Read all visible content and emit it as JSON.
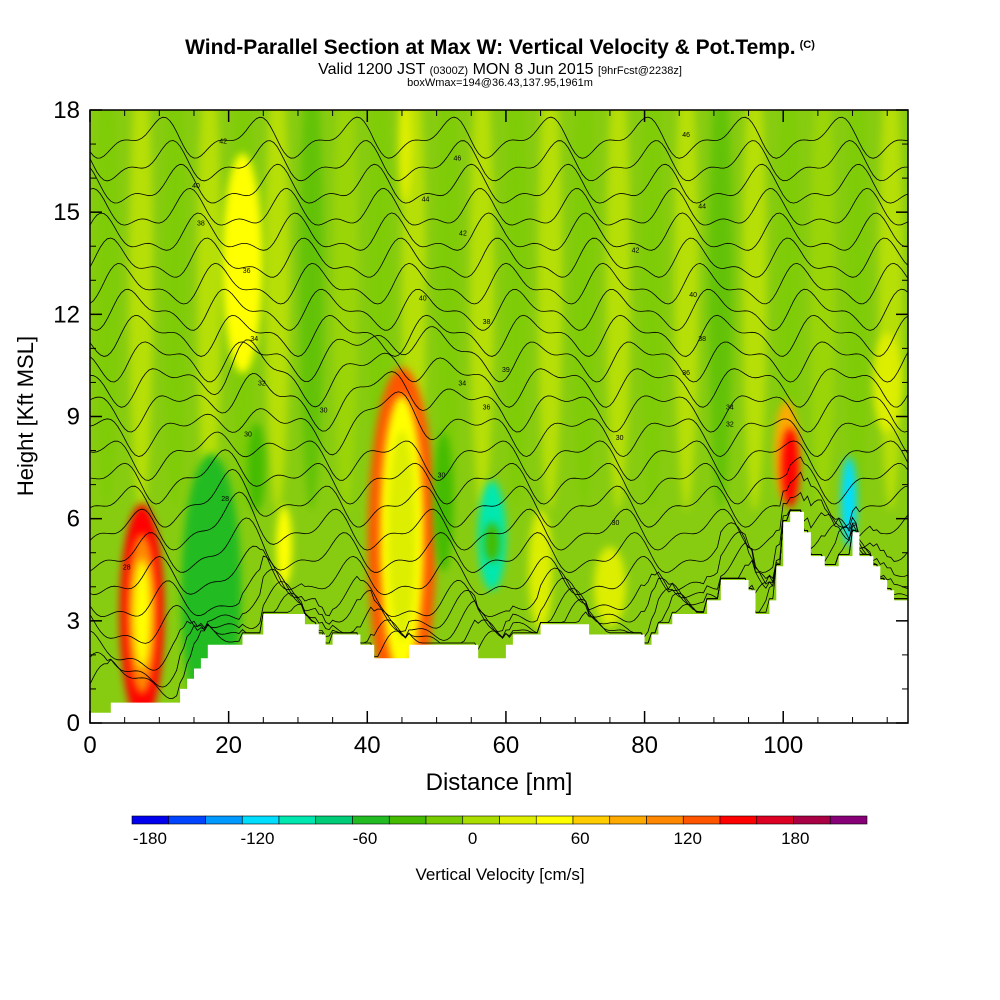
{
  "header": {
    "title": "Wind-Parallel Section at Max W: Vertical Velocity & Pot.Temp.",
    "copyright": "(C)",
    "valid_prefix": "Valid 1200 JST",
    "valid_utc": "(0300Z)",
    "valid_date": "MON 8 Jun 2015",
    "forecast": "[9hrFcst@2238z]",
    "box_info": "boxWmax=194@36.43,137.95,1961m"
  },
  "chart_data": {
    "type": "heatmap",
    "xlabel": "Distance [nm]",
    "ylabel": "Height [Kft MSL]",
    "xlim": [
      0,
      118
    ],
    "ylim": [
      0,
      18
    ],
    "x_ticks": [
      0,
      20,
      40,
      60,
      80,
      100
    ],
    "y_ticks": [
      0,
      3,
      6,
      9,
      12,
      15,
      18
    ],
    "colorbar": {
      "label": "Vertical Velocity [cm/s]",
      "tick_labels": [
        "-180",
        "-120",
        "-60",
        "0",
        "60",
        "120",
        "180"
      ],
      "tick_values": [
        -180,
        -120,
        -60,
        0,
        60,
        120,
        180
      ],
      "min": -190,
      "max": 220,
      "colors": [
        "#0000ee",
        "#0044ff",
        "#0099ff",
        "#00ddff",
        "#00e8b0",
        "#00cc77",
        "#22bb22",
        "#44bb00",
        "#77cc00",
        "#aadd00",
        "#ddee00",
        "#ffff00",
        "#ffcc00",
        "#ffaa00",
        "#ff8800",
        "#ff5500",
        "#ff0000",
        "#dd0022",
        "#aa0044",
        "#880077"
      ]
    },
    "terrain_kft": [
      [
        0,
        0.3
      ],
      [
        3,
        0.3
      ],
      [
        3,
        0.6
      ],
      [
        13,
        0.6
      ],
      [
        13,
        1
      ],
      [
        14,
        1
      ],
      [
        14,
        1.3
      ],
      [
        15,
        1.3
      ],
      [
        15,
        1.6
      ],
      [
        16,
        1.6
      ],
      [
        16,
        1.9
      ],
      [
        17,
        1.9
      ],
      [
        17,
        2.3
      ],
      [
        22,
        2.3
      ],
      [
        22,
        2.6
      ],
      [
        25,
        2.6
      ],
      [
        25,
        3.2
      ],
      [
        31,
        3.2
      ],
      [
        31,
        2.9
      ],
      [
        33,
        2.9
      ],
      [
        33,
        2.6
      ],
      [
        34,
        2.6
      ],
      [
        34,
        2.3
      ],
      [
        35,
        2.3
      ],
      [
        35,
        2.6
      ],
      [
        39,
        2.6
      ],
      [
        39,
        2.3
      ],
      [
        41,
        2.3
      ],
      [
        41,
        1.9
      ],
      [
        46,
        1.9
      ],
      [
        46,
        2.3
      ],
      [
        56,
        2.3
      ],
      [
        56,
        1.9
      ],
      [
        60,
        1.9
      ],
      [
        60,
        2.3
      ],
      [
        61,
        2.3
      ],
      [
        61,
        2.6
      ],
      [
        65,
        2.6
      ],
      [
        65,
        2.9
      ],
      [
        72,
        2.9
      ],
      [
        72,
        2.6
      ],
      [
        80,
        2.6
      ],
      [
        80,
        2.3
      ],
      [
        81,
        2.3
      ],
      [
        81,
        2.6
      ],
      [
        82,
        2.6
      ],
      [
        82,
        2.9
      ],
      [
        84,
        2.9
      ],
      [
        84,
        3.2
      ],
      [
        89,
        3.2
      ],
      [
        89,
        3.6
      ],
      [
        91,
        3.6
      ],
      [
        91,
        4.2
      ],
      [
        95,
        4.2
      ],
      [
        95,
        3.9
      ],
      [
        96,
        3.9
      ],
      [
        96,
        3.2
      ],
      [
        98,
        3.2
      ],
      [
        98,
        3.6
      ],
      [
        99,
        3.6
      ],
      [
        99,
        4.6
      ],
      [
        100,
        4.6
      ],
      [
        100,
        5.9
      ],
      [
        101,
        5.9
      ],
      [
        101,
        6.2
      ],
      [
        103,
        6.2
      ],
      [
        103,
        5.6
      ],
      [
        104,
        5.6
      ],
      [
        104,
        4.9
      ],
      [
        106,
        4.9
      ],
      [
        106,
        4.6
      ],
      [
        108,
        4.6
      ],
      [
        108,
        4.9
      ],
      [
        110,
        4.9
      ],
      [
        110,
        5.6
      ],
      [
        111,
        5.6
      ],
      [
        111,
        4.9
      ],
      [
        113,
        4.9
      ],
      [
        113,
        4.6
      ],
      [
        114,
        4.6
      ],
      [
        114,
        4.2
      ],
      [
        115,
        4.2
      ],
      [
        115,
        3.9
      ],
      [
        116,
        3.9
      ],
      [
        116,
        3.6
      ],
      [
        118,
        3.6
      ]
    ],
    "vertical_velocity_cells_cms": [
      {
        "x": 7.5,
        "y": 3.2,
        "value": 150
      },
      {
        "x": 7.5,
        "y": 3.2,
        "value": 100
      },
      {
        "x": 7.5,
        "y": 3.2,
        "value": 40
      },
      {
        "x": 17.5,
        "y": 3.8,
        "value": -110
      },
      {
        "x": 17.5,
        "y": 3.8,
        "value": -60
      },
      {
        "x": 22,
        "y": 13.5,
        "value": 40
      },
      {
        "x": 24,
        "y": 7.5,
        "value": -40
      },
      {
        "x": 28,
        "y": 5.2,
        "value": 40
      },
      {
        "x": 45,
        "y": 5.2,
        "value": 200
      },
      {
        "x": 45,
        "y": 5.3,
        "value": 120
      },
      {
        "x": 45,
        "y": 5.5,
        "value": 50
      },
      {
        "x": 45,
        "y": 5.5,
        "value": 20
      },
      {
        "x": 45.5,
        "y": 17,
        "value": 30
      },
      {
        "x": 51,
        "y": 6.5,
        "value": -40
      },
      {
        "x": 58,
        "y": 5.5,
        "value": -90
      },
      {
        "x": 58,
        "y": 5.3,
        "value": -40
      },
      {
        "x": 65,
        "y": 4.5,
        "value": 30
      },
      {
        "x": 75,
        "y": 4,
        "value": 30
      },
      {
        "x": 100.5,
        "y": 8,
        "value": 90
      },
      {
        "x": 101,
        "y": 7.5,
        "value": 140
      },
      {
        "x": 109.5,
        "y": 6.5,
        "value": -110
      },
      {
        "x": 115,
        "y": 10,
        "value": 30
      }
    ],
    "potential_temperature_labels": [
      {
        "x": 5.3,
        "y": 4.6,
        "label": "28"
      },
      {
        "x": 19.5,
        "y": 6.6,
        "label": "28"
      },
      {
        "x": 22.8,
        "y": 8.5,
        "label": "30"
      },
      {
        "x": 24.8,
        "y": 10.0,
        "label": "32"
      },
      {
        "x": 23.7,
        "y": 11.3,
        "label": "34"
      },
      {
        "x": 22.6,
        "y": 13.3,
        "label": "36"
      },
      {
        "x": 16.0,
        "y": 14.7,
        "label": "38"
      },
      {
        "x": 15.3,
        "y": 15.8,
        "label": "40"
      },
      {
        "x": 19.2,
        "y": 17.1,
        "label": "42"
      },
      {
        "x": 33.7,
        "y": 9.2,
        "label": "30"
      },
      {
        "x": 50.7,
        "y": 7.3,
        "label": "30"
      },
      {
        "x": 48.0,
        "y": 12.5,
        "label": "40"
      },
      {
        "x": 53.7,
        "y": 10.0,
        "label": "34"
      },
      {
        "x": 57.2,
        "y": 9.3,
        "label": "36"
      },
      {
        "x": 57.2,
        "y": 11.8,
        "label": "38"
      },
      {
        "x": 60.0,
        "y": 10.4,
        "label": "39"
      },
      {
        "x": 53.8,
        "y": 14.4,
        "label": "42"
      },
      {
        "x": 48.4,
        "y": 15.4,
        "label": "44"
      },
      {
        "x": 53.0,
        "y": 16.6,
        "label": "46"
      },
      {
        "x": 75.8,
        "y": 5.9,
        "label": "30"
      },
      {
        "x": 76.4,
        "y": 8.4,
        "label": "30"
      },
      {
        "x": 78.7,
        "y": 13.9,
        "label": "42"
      },
      {
        "x": 87.0,
        "y": 12.6,
        "label": "40"
      },
      {
        "x": 88.3,
        "y": 11.3,
        "label": "38"
      },
      {
        "x": 86.0,
        "y": 10.3,
        "label": "36"
      },
      {
        "x": 88.3,
        "y": 15.2,
        "label": "44"
      },
      {
        "x": 86.0,
        "y": 17.3,
        "label": "46"
      },
      {
        "x": 92.3,
        "y": 9.3,
        "label": "34"
      },
      {
        "x": 92.3,
        "y": 8.8,
        "label": "32"
      }
    ],
    "contour_count": 24,
    "grid": false
  }
}
